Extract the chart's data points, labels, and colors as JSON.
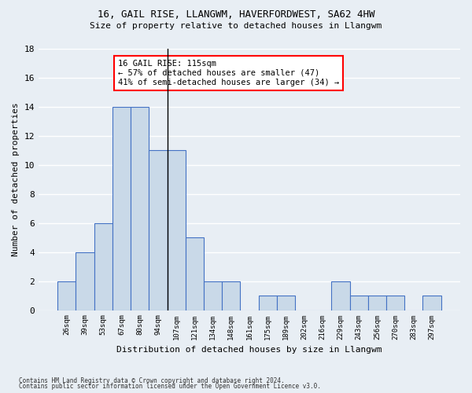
{
  "title_line1": "16, GAIL RISE, LLANGWM, HAVERFORDWEST, SA62 4HW",
  "title_line2": "Size of property relative to detached houses in Llangwm",
  "xlabel": "Distribution of detached houses by size in Llangwm",
  "ylabel": "Number of detached properties",
  "footer_line1": "Contains HM Land Registry data © Crown copyright and database right 2024.",
  "footer_line2": "Contains public sector information licensed under the Open Government Licence v3.0.",
  "bin_labels": [
    "26sqm",
    "39sqm",
    "53sqm",
    "67sqm",
    "80sqm",
    "94sqm",
    "107sqm",
    "121sqm",
    "134sqm",
    "148sqm",
    "161sqm",
    "175sqm",
    "189sqm",
    "202sqm",
    "216sqm",
    "229sqm",
    "243sqm",
    "256sqm",
    "270sqm",
    "283sqm",
    "297sqm"
  ],
  "bar_values": [
    2,
    4,
    6,
    14,
    14,
    11,
    11,
    5,
    2,
    2,
    0,
    1,
    1,
    0,
    0,
    2,
    1,
    1,
    1,
    0,
    1
  ],
  "bar_color": "#c9d9e8",
  "bar_edge_color": "#4472c4",
  "property_line_bin_index": 6,
  "annotation_title": "16 GAIL RISE: 115sqm",
  "annotation_line1": "← 57% of detached houses are smaller (47)",
  "annotation_line2": "41% of semi-detached houses are larger (34) →",
  "annotation_box_color": "white",
  "annotation_box_edge_color": "red",
  "ylim": [
    0,
    18
  ],
  "yticks": [
    0,
    2,
    4,
    6,
    8,
    10,
    12,
    14,
    16,
    18
  ],
  "bg_color": "#e8eef4",
  "grid_color": "white"
}
